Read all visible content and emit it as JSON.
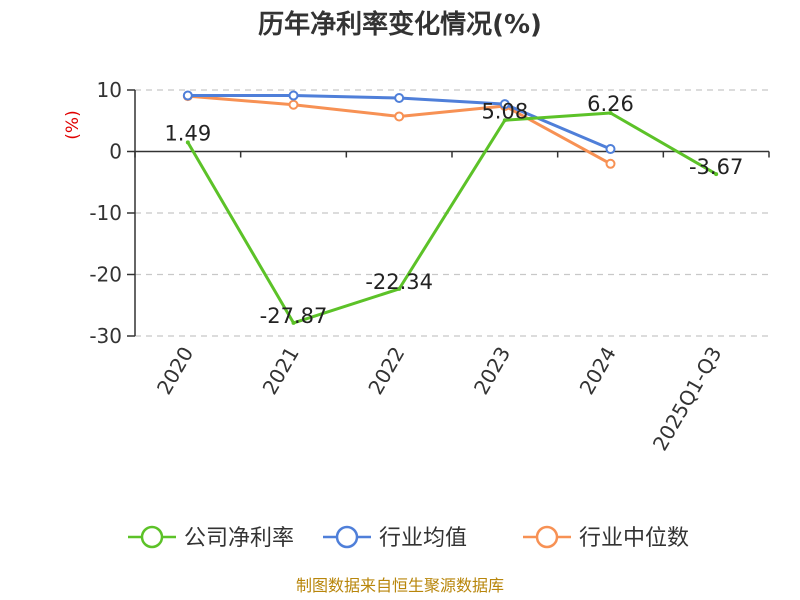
{
  "chart_data": {
    "type": "line",
    "title": "历年净利率变化情况(%)",
    "ylabel": "(%)",
    "categories": [
      "2020",
      "2021",
      "2022",
      "2023",
      "2024",
      "2025Q1-Q3"
    ],
    "ylim": [
      -30,
      10
    ],
    "yticks": [
      10,
      0,
      -10,
      -20,
      -30
    ],
    "grid": true,
    "legend_position": "bottom",
    "series": [
      {
        "name": "公司净利率",
        "color": "#5cc228",
        "values": [
          1.49,
          -27.87,
          -22.34,
          5.08,
          6.26,
          -3.67
        ],
        "labels": [
          "1.49",
          "-27.87",
          "-22.34",
          "5.08",
          "6.26",
          "-3.67"
        ]
      },
      {
        "name": "行业均值",
        "color": "#4f7fd9",
        "values": [
          9.1,
          9.1,
          8.7,
          7.7,
          0.4,
          null
        ]
      },
      {
        "name": "行业中位数",
        "color": "#f79154",
        "values": [
          9.0,
          7.6,
          5.7,
          7.4,
          -2.0,
          null
        ]
      }
    ]
  },
  "source": "制图数据来自恒生聚源数据库"
}
